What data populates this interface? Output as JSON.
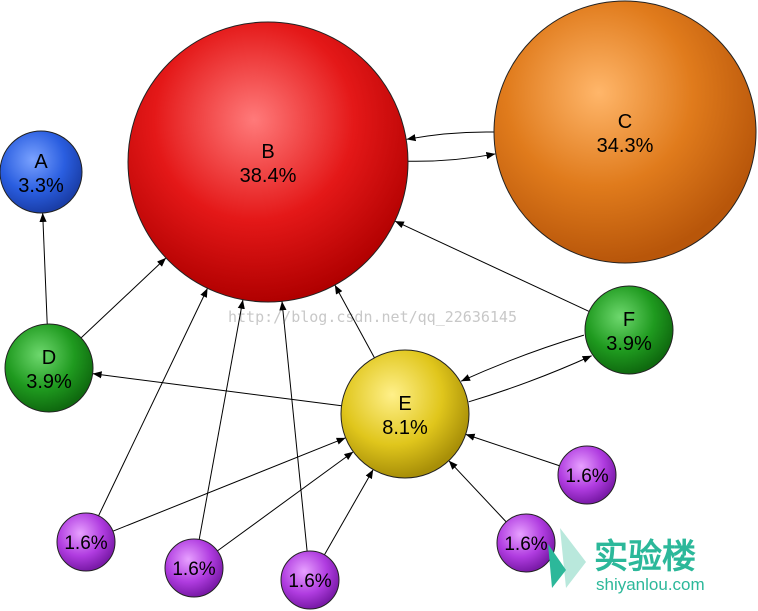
{
  "nodes": [
    {
      "id": "B",
      "name": "B",
      "value": "38.4%",
      "color": "#e01010"
    },
    {
      "id": "C",
      "name": "C",
      "value": "34.3%",
      "color": "#e07b1c"
    },
    {
      "id": "A",
      "name": "A",
      "value": "3.3%",
      "color": "#2a5ee0"
    },
    {
      "id": "D",
      "name": "D",
      "value": "3.9%",
      "color": "#1f9a1f"
    },
    {
      "id": "F",
      "name": "F",
      "value": "3.9%",
      "color": "#1f9a1f"
    },
    {
      "id": "E",
      "name": "E",
      "value": "8.1%",
      "color": "#e0c61c"
    },
    {
      "id": "P1",
      "name": "",
      "value": "1.6%",
      "color": "#b03ce0"
    },
    {
      "id": "P2",
      "name": "",
      "value": "1.6%",
      "color": "#b03ce0"
    },
    {
      "id": "P3",
      "name": "",
      "value": "1.6%",
      "color": "#b03ce0"
    },
    {
      "id": "P4",
      "name": "",
      "value": "1.6%",
      "color": "#b03ce0"
    },
    {
      "id": "P5",
      "name": "",
      "value": "1.6%",
      "color": "#b03ce0"
    }
  ],
  "edges": [
    {
      "from": "B",
      "to": "C"
    },
    {
      "from": "C",
      "to": "B"
    },
    {
      "from": "D",
      "to": "A"
    },
    {
      "from": "D",
      "to": "B"
    },
    {
      "from": "E",
      "to": "B"
    },
    {
      "from": "E",
      "to": "D"
    },
    {
      "from": "E",
      "to": "F"
    },
    {
      "from": "F",
      "to": "E"
    },
    {
      "from": "F",
      "to": "B"
    },
    {
      "from": "P1",
      "to": "B"
    },
    {
      "from": "P1",
      "to": "E"
    },
    {
      "from": "P2",
      "to": "B"
    },
    {
      "from": "P2",
      "to": "E"
    },
    {
      "from": "P3",
      "to": "B"
    },
    {
      "from": "P3",
      "to": "E"
    },
    {
      "from": "P4",
      "to": "E"
    },
    {
      "from": "P5",
      "to": "E"
    }
  ],
  "watermark": "http://blog.csdn.net/qq_22636145",
  "logo": {
    "title": "实验楼",
    "subtitle": "shiyanlou.com"
  }
}
